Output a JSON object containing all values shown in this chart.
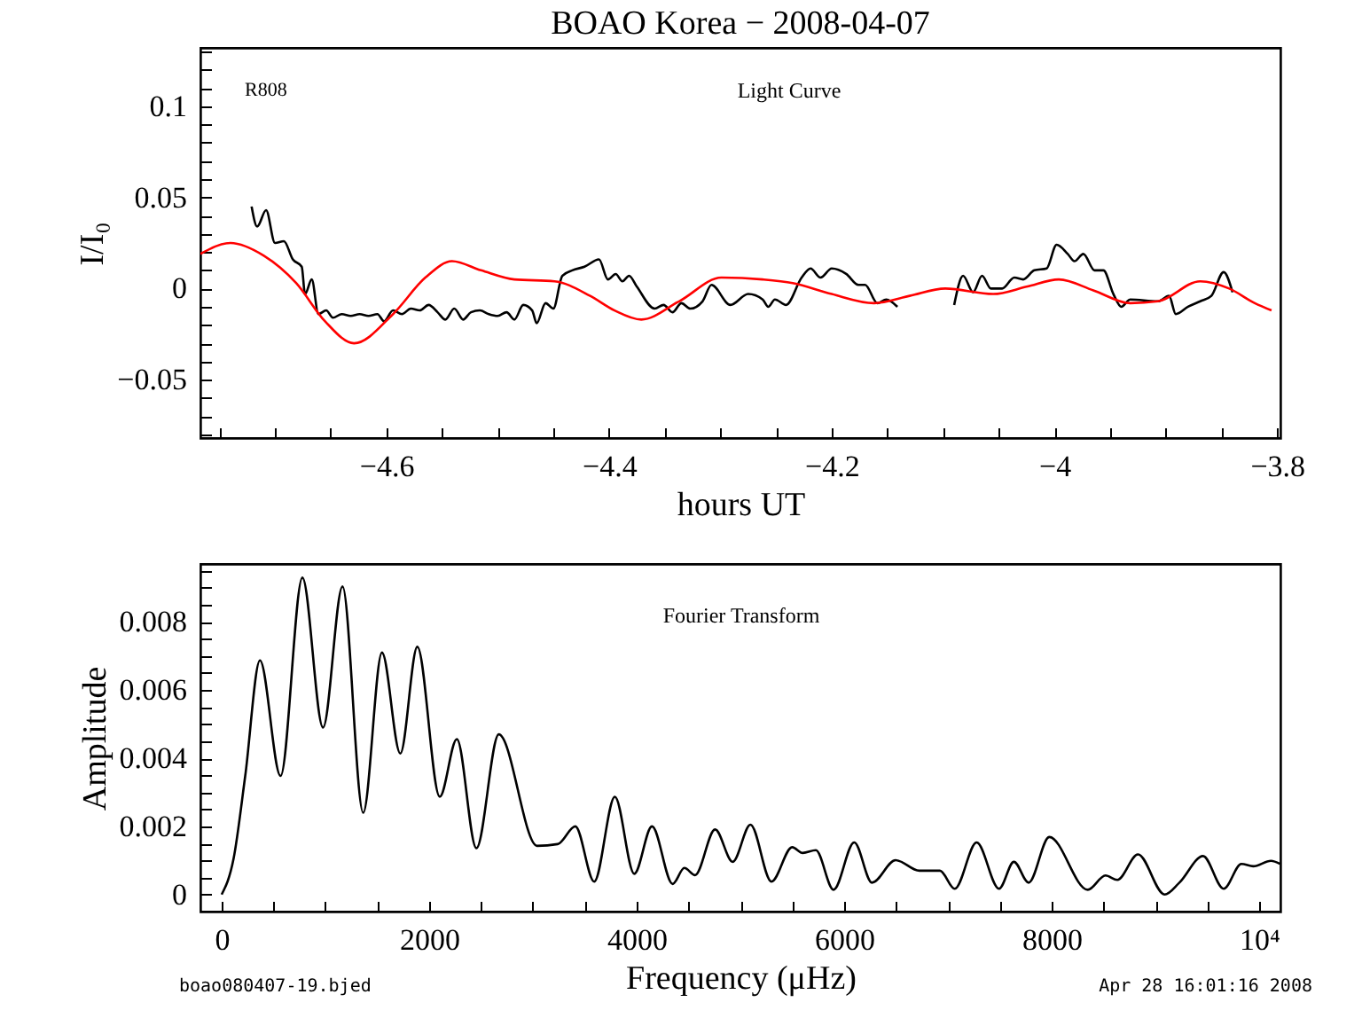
{
  "chart_data": [
    {
      "type": "line",
      "title": "BOAO Korea − 2008-04-07",
      "xlabel": "hours UT",
      "ylabel": "I/I₀",
      "annotations": [
        "R808",
        "Light Curve"
      ],
      "xlim": [
        -4.767,
        -3.797
      ],
      "ylim": [
        -0.082,
        0.132
      ],
      "xticks": [
        {
          "value": -4.75,
          "label": null
        },
        {
          "value": -4.7,
          "label": null
        },
        {
          "value": -4.65,
          "label": null
        },
        {
          "value": -4.6,
          "label": "−4.6"
        },
        {
          "value": -4.55,
          "label": null
        },
        {
          "value": -4.5,
          "label": null
        },
        {
          "value": -4.45,
          "label": null
        },
        {
          "value": -4.4,
          "label": "−4.4"
        },
        {
          "value": -4.35,
          "label": null
        },
        {
          "value": -4.3,
          "label": null
        },
        {
          "value": -4.25,
          "label": null
        },
        {
          "value": -4.2,
          "label": "−4.2"
        },
        {
          "value": -4.15,
          "label": null
        },
        {
          "value": -4.1,
          "label": null
        },
        {
          "value": -4.05,
          "label": null
        },
        {
          "value": -4,
          "label": "−4"
        },
        {
          "value": -3.95,
          "label": null
        },
        {
          "value": -3.9,
          "label": null
        },
        {
          "value": -3.85,
          "label": null
        },
        {
          "value": -3.8,
          "label": "−3.8"
        }
      ],
      "yticks": [
        {
          "value": -0.08,
          "label": null
        },
        {
          "value": -0.07,
          "label": null
        },
        {
          "value": -0.06,
          "label": null
        },
        {
          "value": -0.05,
          "label": "−0.05"
        },
        {
          "value": -0.04,
          "label": null
        },
        {
          "value": -0.03,
          "label": null
        },
        {
          "value": -0.02,
          "label": null
        },
        {
          "value": -0.01,
          "label": null
        },
        0,
        {
          "value": 0.01,
          "label": null
        },
        {
          "value": 0.02,
          "label": null
        },
        {
          "value": 0.03,
          "label": null
        },
        {
          "value": 0.04,
          "label": null
        },
        0.05,
        {
          "value": 0.06,
          "label": null
        },
        {
          "value": 0.07,
          "label": null
        },
        {
          "value": 0.08,
          "label": null
        },
        {
          "value": 0.09,
          "label": null
        },
        0.1,
        {
          "value": 0.11,
          "label": null
        },
        {
          "value": 0.12,
          "label": null
        },
        {
          "value": 0.13,
          "label": null
        }
      ],
      "series": [
        {
          "color": "#000000",
          "x": [
            -4.721,
            -4.716,
            -4.708,
            -4.7,
            -4.692,
            -4.684,
            -4.676,
            -4.673,
            -4.667,
            -4.661,
            -4.654,
            -4.648,
            -4.64,
            -4.632,
            -4.624,
            -4.616,
            -4.608,
            -4.602,
            -4.594,
            -4.586,
            -4.578,
            -4.57,
            -4.562,
            -4.554,
            -4.547,
            -4.539,
            -4.531,
            -4.524,
            -4.516,
            -4.508,
            -4.5,
            -4.492,
            -4.485,
            -4.477,
            -4.469,
            -4.465,
            -4.457,
            -4.45,
            -4.442,
            -4.433,
            -4.422,
            -4.409,
            -4.401,
            -4.394,
            -4.388,
            -4.382,
            -4.375,
            -4.359,
            -4.351,
            -4.343,
            -4.335,
            -4.327,
            -4.316,
            -4.308,
            -4.291,
            -4.275,
            -4.262,
            -4.257,
            -4.251,
            -4.241,
            -4.227,
            -4.219,
            -4.21,
            -4.2,
            -4.187,
            -4.176,
            -4.17,
            -4.159,
            -4.151,
            -4.141,
            -4.12,
            -4.09,
            -4.082,
            -4.073,
            -4.065,
            -4.057,
            -4.047,
            -4.036,
            -4.028,
            -4.018,
            -4.007,
            -3.998,
            -3.988,
            -3.982,
            -3.974,
            -3.964,
            -3.956,
            -3.947,
            -3.94,
            -3.932,
            -3.907,
            -3.897,
            -3.891,
            -3.88,
            -3.869,
            -3.859,
            -3.848,
            -3.84
          ],
          "values": [
            0.045,
            0.034,
            0.043,
            0.025,
            0.026,
            0.016,
            0.012,
            -0.003,
            0.005,
            -0.014,
            -0.012,
            -0.016,
            -0.014,
            -0.015,
            -0.014,
            -0.015,
            -0.014,
            -0.018,
            -0.012,
            -0.014,
            -0.011,
            -0.012,
            -0.009,
            -0.013,
            -0.017,
            -0.011,
            -0.017,
            -0.013,
            -0.012,
            -0.014,
            -0.015,
            -0.013,
            -0.017,
            -0.009,
            -0.012,
            -0.019,
            -0.008,
            -0.011,
            0.007,
            0.01,
            0.012,
            0.016,
            0.005,
            0.008,
            0.004,
            0.007,
            0.001,
            -0.011,
            -0.009,
            -0.013,
            -0.008,
            -0.011,
            -0.007,
            0.002,
            -0.009,
            -0.003,
            -0.006,
            -0.01,
            -0.006,
            -0.009,
            0.006,
            0.011,
            0.006,
            0.011,
            0.008,
            0.002,
            0.002,
            -0.008,
            -0.006,
            -0.01,
            null,
            -0.009,
            0.007,
            -0.002,
            0.007,
            0,
            0,
            0.006,
            0.005,
            0.01,
            0.011,
            0.024,
            0.019,
            0.015,
            0.019,
            0.01,
            0.01,
            -0.003,
            -0.01,
            -0.006,
            -0.007,
            -0.004,
            -0.014,
            -0.01,
            -0.007,
            -0.004,
            0.009,
            -0.002
          ]
        },
        {
          "color": "#ff0000",
          "x": [
            -4.767,
            -4.74,
            -4.71,
            -4.681,
            -4.655,
            -4.629,
            -4.594,
            -4.565,
            -4.541,
            -4.515,
            -4.485,
            -4.449,
            -4.417,
            -4.395,
            -4.371,
            -4.337,
            -4.299,
            -4.262,
            -4.235,
            -4.2,
            -4.162,
            -4.13,
            -4.098,
            -4.055,
            -4.025,
            -3.996,
            -3.965,
            -3.932,
            -3.907,
            -3.869,
            -3.843,
            -3.82,
            -3.805
          ],
          "values": [
            0.019,
            0.025,
            0.018,
            0.003,
            -0.018,
            -0.03,
            -0.014,
            0.006,
            0.015,
            0.01,
            0.005,
            0.004,
            -0.004,
            -0.012,
            -0.017,
            -0.007,
            0.006,
            0.005,
            0.003,
            -0.003,
            -0.008,
            -0.004,
            0,
            -0.003,
            0.001,
            0.005,
            -0.001,
            -0.008,
            -0.007,
            0.004,
            0,
            -0.008,
            -0.012
          ]
        }
      ]
    },
    {
      "type": "line",
      "xlabel": "Frequency (μHz)",
      "ylabel": "Amplitude",
      "annotations": [
        "Fourier Transform",
        "boao080407-19.bjed",
        "Apr 28 16:01:16 2008"
      ],
      "xlim": [
        -205,
        10205
      ],
      "ylim": [
        -0.0005,
        0.0097
      ],
      "xticks": [
        0,
        {
          "value": 500,
          "label": null
        },
        {
          "value": 1000,
          "label": null
        },
        {
          "value": 1500,
          "label": null
        },
        2000,
        {
          "value": 2500,
          "label": null
        },
        {
          "value": 3000,
          "label": null
        },
        {
          "value": 3500,
          "label": null
        },
        4000,
        {
          "value": 4500,
          "label": null
        },
        {
          "value": 5000,
          "label": null
        },
        {
          "value": 5500,
          "label": null
        },
        6000,
        {
          "value": 6500,
          "label": null
        },
        {
          "value": 7000,
          "label": null
        },
        {
          "value": 7500,
          "label": null
        },
        8000,
        {
          "value": 8500,
          "label": null
        },
        {
          "value": 9000,
          "label": null
        },
        {
          "value": 9500,
          "label": null
        },
        {
          "value": 10000,
          "label": "10⁴"
        }
      ],
      "yticks": [
        0,
        {
          "value": 0.0005,
          "label": null
        },
        {
          "value": 0.001,
          "label": null
        },
        {
          "value": 0.0015,
          "label": null
        },
        0.002,
        {
          "value": 0.0025,
          "label": null
        },
        {
          "value": 0.003,
          "label": null
        },
        {
          "value": 0.0035,
          "label": null
        },
        0.004,
        {
          "value": 0.0045,
          "label": null
        },
        {
          "value": 0.005,
          "label": null
        },
        {
          "value": 0.0055,
          "label": null
        },
        0.006,
        {
          "value": 0.0065,
          "label": null
        },
        {
          "value": 0.007,
          "label": null
        },
        {
          "value": 0.0075,
          "label": null
        },
        0.008,
        {
          "value": 0.0085,
          "label": null
        },
        {
          "value": 0.009,
          "label": null
        },
        {
          "value": 0.0095,
          "label": null
        }
      ],
      "series": [
        {
          "color": "#000000",
          "x": [
            0,
            114,
            227,
            369,
            568,
            778,
            977,
            1165,
            1364,
            1545,
            1722,
            1886,
            2102,
            2267,
            2455,
            2671,
            3040,
            3239,
            3409,
            3591,
            3790,
            3977,
            4148,
            4347,
            4460,
            4563,
            4756,
            4926,
            5097,
            5299,
            5499,
            5601,
            5727,
            5898,
            6097,
            6268,
            6496,
            6724,
            6923,
            7066,
            7277,
            7493,
            7636,
            7778,
            7977,
            8348,
            8519,
            8633,
            8832,
            9089,
            9231,
            9459,
            9658,
            9829,
            9943,
            10114,
            10200
          ],
          "values": [
            0,
            0.00104,
            0.00348,
            0.00687,
            0.00348,
            0.0093,
            0.0049,
            0.00904,
            0.0024,
            0.0071,
            0.00414,
            0.00727,
            0.00287,
            0.00456,
            0.00136,
            0.0047,
            0.00143,
            0.00148,
            0.002,
            0.00038,
            0.00287,
            0.00061,
            0.002,
            0.00031,
            0.00078,
            0.00057,
            0.00191,
            0.00096,
            0.00205,
            0.00038,
            0.00139,
            0.00122,
            0.0013,
            0.00014,
            0.00153,
            0.00035,
            0.00101,
            0.0007,
            0.0007,
            0.00017,
            0.00153,
            0.00017,
            0.00096,
            0.00035,
            0.00169,
            0.00014,
            0.00056,
            0.00043,
            0.00118,
            0,
            0.00035,
            0.00113,
            0.00017,
            0.0009,
            0.00083,
            0.00099,
            0.0009
          ]
        }
      ]
    }
  ]
}
